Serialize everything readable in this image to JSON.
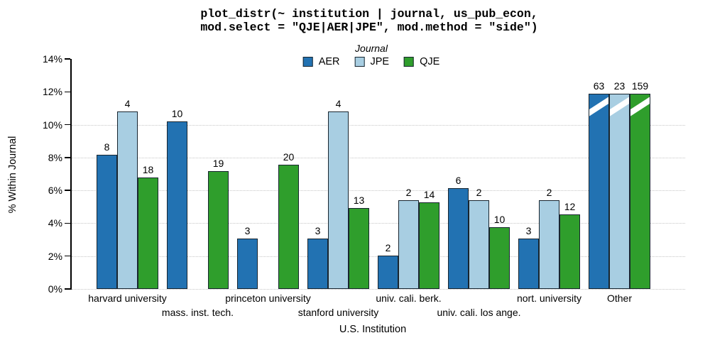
{
  "title": {
    "line1": "plot_distr(~ institution | journal, us_pub_econ,",
    "line2": "mod.select = \"QJE|AER|JPE\", mod.method = \"side\")"
  },
  "legend": {
    "title": "Journal",
    "entries": [
      {
        "label": "AER",
        "color": "#2272b2"
      },
      {
        "label": "JPE",
        "color": "#a8cee2"
      },
      {
        "label": "QJE",
        "color": "#2f9e2c"
      }
    ]
  },
  "axes": {
    "y_label": "% Within Journal",
    "x_label": "U.S. Institution",
    "y_tick_labels": [
      "0%",
      "2%",
      "4%",
      "6%",
      "8%",
      "10%",
      "12%",
      "14%"
    ],
    "y_max_pct": 14,
    "gridlines_pct": [
      0,
      2,
      4,
      6,
      8,
      10
    ]
  },
  "chart_data": {
    "type": "bar",
    "title": "plot_distr(~ institution | journal, us_pub_econ, mod.select = \"QJE|AER|JPE\", mod.method = \"side\")",
    "xlabel": "U.S. Institution",
    "ylabel": "% Within Journal",
    "ylim": [
      0,
      14
    ],
    "y_tick_labels": [
      "0%",
      "2%",
      "4%",
      "6%",
      "8%",
      "10%",
      "12%",
      "14%"
    ],
    "grid": "horizontal dotted at 0,2,4,6,8,10 percent",
    "legend_position": "top-center",
    "legend_title": "Journal",
    "categories": [
      "harvard university",
      "mass. inst. tech.",
      "princeton university",
      "stanford university",
      "univ. cali. berk.",
      "univ. cali. los ange.",
      "nort. university",
      "Other"
    ],
    "category_label_rows": [
      1,
      2,
      1,
      2,
      1,
      2,
      1,
      1
    ],
    "note": "bars annotated with raw counts; heights are % within journal; Other bars truncated with white break slashes at ~11.9%",
    "series": [
      {
        "name": "AER",
        "color": "#2272b2",
        "counts": [
          8,
          10,
          3,
          3,
          2,
          6,
          3,
          63
        ],
        "bar_pct": [
          8.16,
          10.2,
          3.06,
          3.06,
          2.04,
          6.12,
          3.06,
          11.9
        ],
        "truncated": [
          false,
          false,
          false,
          false,
          false,
          false,
          false,
          true
        ]
      },
      {
        "name": "JPE",
        "color": "#a8cee2",
        "counts": [
          4,
          null,
          null,
          4,
          2,
          2,
          2,
          23
        ],
        "bar_pct": [
          10.81,
          null,
          null,
          10.81,
          5.41,
          5.41,
          5.41,
          11.9
        ],
        "truncated": [
          false,
          false,
          false,
          false,
          false,
          false,
          false,
          true
        ]
      },
      {
        "name": "QJE",
        "color": "#2f9e2c",
        "counts": [
          18,
          19,
          20,
          13,
          14,
          10,
          12,
          159
        ],
        "bar_pct": [
          6.79,
          7.17,
          7.55,
          4.91,
          5.28,
          3.77,
          4.53,
          11.9
        ],
        "truncated": [
          false,
          false,
          false,
          false,
          false,
          false,
          false,
          true
        ]
      }
    ]
  }
}
